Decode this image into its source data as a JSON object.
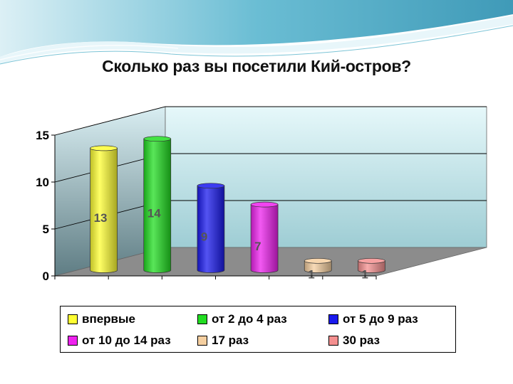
{
  "chart_data": {
    "type": "bar",
    "title": "Сколько раз вы посетили Кий-остров?",
    "categories": [
      "впервые",
      "от 2 до 4 раз",
      "от 5 до 9 раз",
      "от 10 до 14 раз",
      "17 раз",
      "30 раз"
    ],
    "values": [
      13,
      14,
      9,
      7,
      1,
      1
    ],
    "data_labels": [
      "13",
      "14",
      "9",
      "7",
      "1",
      "1"
    ],
    "colors": [
      "#ffff33",
      "#22dd22",
      "#1a1aee",
      "#ee22ee",
      "#f5cfa0",
      "#f59090"
    ],
    "ylim": [
      0,
      15
    ],
    "yticks": [
      "0",
      "5",
      "10",
      "15"
    ],
    "grid": true,
    "legend_position": "bottom",
    "style": "3d-cylinder"
  }
}
